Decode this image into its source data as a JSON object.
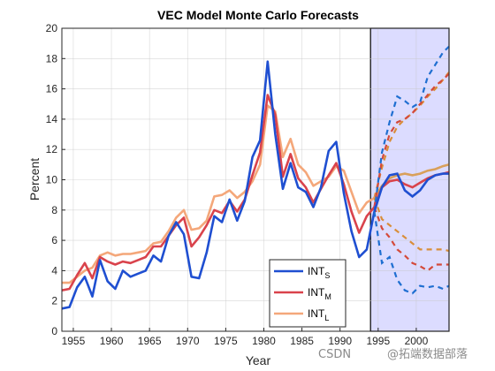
{
  "chart_data": {
    "type": "line",
    "title": "VEC Model Monte Carlo Forecasts",
    "xlabel": "Year",
    "ylabel": "Percent",
    "xlim": [
      1953.5,
      2004.3
    ],
    "ylim": [
      0,
      20
    ],
    "xticks": [
      1955,
      1960,
      1965,
      1970,
      1975,
      1980,
      1985,
      1990,
      1995,
      2000
    ],
    "xtick_labels": [
      "1955",
      "1960",
      "1965",
      "1970",
      "1975",
      "1980",
      "1985",
      "1990",
      "1995",
      "2000"
    ],
    "yticks": [
      0,
      2,
      4,
      6,
      8,
      10,
      12,
      14,
      16,
      18,
      20
    ],
    "grid": true,
    "legend_location": "bottom-center",
    "forecast_region": {
      "x_start": 1994,
      "x_end": 2004.3,
      "fill": "#dcdcff",
      "edge": "#000000"
    },
    "series": [
      {
        "name": "INT_S",
        "label_main": "INT",
        "label_sub": "S",
        "color": "#1f4fd1",
        "x": [
          1953.5,
          1954.5,
          1955.5,
          1956.5,
          1957.5,
          1958.5,
          1959.5,
          1960.5,
          1961.5,
          1962.5,
          1963.5,
          1964.5,
          1965.5,
          1966.5,
          1967.5,
          1968.5,
          1969.5,
          1970.5,
          1971.5,
          1972.5,
          1973.5,
          1974.5,
          1975.5,
          1976.5,
          1977.5,
          1978.5,
          1979.5,
          1980.5,
          1981.5,
          1982.5,
          1983.5,
          1984.5,
          1985.5,
          1986.5,
          1987.5,
          1988.5,
          1989.5,
          1990.5,
          1991.5,
          1992.5,
          1993.5,
          1994.5
        ],
        "y": [
          1.5,
          1.6,
          2.9,
          3.6,
          2.3,
          4.7,
          3.3,
          2.8,
          4.0,
          3.6,
          3.8,
          4.0,
          5.0,
          4.6,
          6.3,
          7.2,
          6.4,
          3.6,
          3.5,
          5.2,
          7.6,
          7.2,
          8.7,
          7.3,
          8.6,
          11.5,
          12.6,
          17.8,
          13.0,
          9.4,
          11.1,
          9.5,
          9.2,
          8.2,
          9.5,
          11.9,
          12.5,
          9.1,
          6.6,
          4.9,
          5.4,
          7.9
        ],
        "forecast": {
          "x": [
            1994.5,
            1995.5,
            1996.5,
            1997.5,
            1998.5,
            1999.5,
            2000.5,
            2001.5,
            2002.5,
            2003.5,
            2004.3
          ],
          "mean": [
            7.9,
            9.5,
            10.3,
            10.4,
            9.3,
            8.9,
            9.3,
            10.0,
            10.3,
            10.4,
            10.4
          ],
          "upper": [
            7.9,
            11.8,
            13.8,
            15.5,
            15.2,
            14.8,
            15.1,
            16.8,
            17.6,
            18.4,
            18.8
          ],
          "lower": [
            7.9,
            4.5,
            4.9,
            3.4,
            2.7,
            2.5,
            3.0,
            2.9,
            3.0,
            2.8,
            3.0
          ]
        }
      },
      {
        "name": "INT_M",
        "label_main": "INT",
        "label_sub": "M",
        "color": "#d9434c",
        "x": [
          1953.5,
          1954.5,
          1955.5,
          1956.5,
          1957.5,
          1958.5,
          1959.5,
          1960.5,
          1961.5,
          1962.5,
          1963.5,
          1964.5,
          1965.5,
          1966.5,
          1967.5,
          1968.5,
          1969.5,
          1970.5,
          1971.5,
          1972.5,
          1973.5,
          1974.5,
          1975.5,
          1976.5,
          1977.5,
          1978.5,
          1979.5,
          1980.5,
          1981.5,
          1982.5,
          1983.5,
          1984.5,
          1985.5,
          1986.5,
          1987.5,
          1988.5,
          1989.5,
          1990.5,
          1991.5,
          1992.5,
          1993.5,
          1994.5
        ],
        "y": [
          2.7,
          2.8,
          3.7,
          4.5,
          3.5,
          4.9,
          4.6,
          4.4,
          4.6,
          4.5,
          4.7,
          4.9,
          5.6,
          5.6,
          6.3,
          7.0,
          7.5,
          5.6,
          6.2,
          7.0,
          8.0,
          7.8,
          8.6,
          7.9,
          8.7,
          10.3,
          11.8,
          15.6,
          14.3,
          10.2,
          11.7,
          10.1,
          9.5,
          8.5,
          9.4,
          10.3,
          11.1,
          9.7,
          7.9,
          6.5,
          7.6,
          8.2
        ],
        "forecast": {
          "x": [
            1994.5,
            1995.5,
            1996.5,
            1997.5,
            1998.5,
            1999.5,
            2000.5,
            2001.5,
            2002.5,
            2003.5,
            2004.3
          ],
          "mean": [
            8.2,
            9.5,
            9.9,
            10.0,
            9.7,
            9.5,
            9.8,
            10.1,
            10.3,
            10.4,
            10.5
          ],
          "upper": [
            8.2,
            11.3,
            13.0,
            13.8,
            14.0,
            14.4,
            15.0,
            15.6,
            16.2,
            16.6,
            17.0
          ],
          "lower": [
            8.2,
            6.8,
            6.2,
            5.4,
            5.0,
            4.5,
            4.3,
            4.0,
            4.4,
            4.4,
            4.4
          ]
        }
      },
      {
        "name": "INT_L",
        "label_main": "INT",
        "label_sub": "L",
        "color": "#f4a77a",
        "x": [
          1953.5,
          1954.5,
          1955.5,
          1956.5,
          1957.5,
          1958.5,
          1959.5,
          1960.5,
          1961.5,
          1962.5,
          1963.5,
          1964.5,
          1965.5,
          1966.5,
          1967.5,
          1968.5,
          1969.5,
          1970.5,
          1971.5,
          1972.5,
          1973.5,
          1974.5,
          1975.5,
          1976.5,
          1977.5,
          1978.5,
          1979.5,
          1980.5,
          1981.5,
          1982.5,
          1983.5,
          1984.5,
          1985.5,
          1986.5,
          1987.5,
          1988.5,
          1989.5,
          1990.5,
          1991.5,
          1992.5,
          1993.5,
          1994.5
        ],
        "y": [
          3.2,
          3.2,
          3.6,
          4.0,
          4.2,
          5.0,
          5.2,
          5.0,
          5.1,
          5.1,
          5.2,
          5.3,
          5.8,
          5.9,
          6.6,
          7.5,
          8.0,
          6.7,
          6.8,
          7.3,
          8.9,
          9.0,
          9.3,
          8.8,
          9.2,
          9.9,
          11.0,
          14.9,
          14.5,
          11.5,
          12.7,
          11.0,
          10.5,
          9.6,
          9.9,
          10.2,
          10.9,
          10.6,
          9.2,
          7.8,
          8.5,
          8.8
        ],
        "forecast": {
          "x": [
            1994.5,
            1995.5,
            1996.5,
            1997.5,
            1998.5,
            1999.5,
            2000.5,
            2001.5,
            2002.5,
            2003.5,
            2004.3
          ],
          "mean": [
            8.8,
            9.6,
            10.1,
            10.3,
            10.4,
            10.3,
            10.4,
            10.6,
            10.7,
            10.9,
            11.0
          ],
          "upper": [
            8.8,
            10.8,
            12.5,
            13.5,
            14.0,
            14.4,
            14.9,
            15.5,
            16.0,
            16.6,
            17.1
          ],
          "lower": [
            8.8,
            7.4,
            7.0,
            6.6,
            6.2,
            5.8,
            5.4,
            5.4,
            5.4,
            5.4,
            5.3
          ]
        }
      }
    ]
  },
  "watermark": {
    "left": "CSDN",
    "right": "@拓端数据部落"
  }
}
